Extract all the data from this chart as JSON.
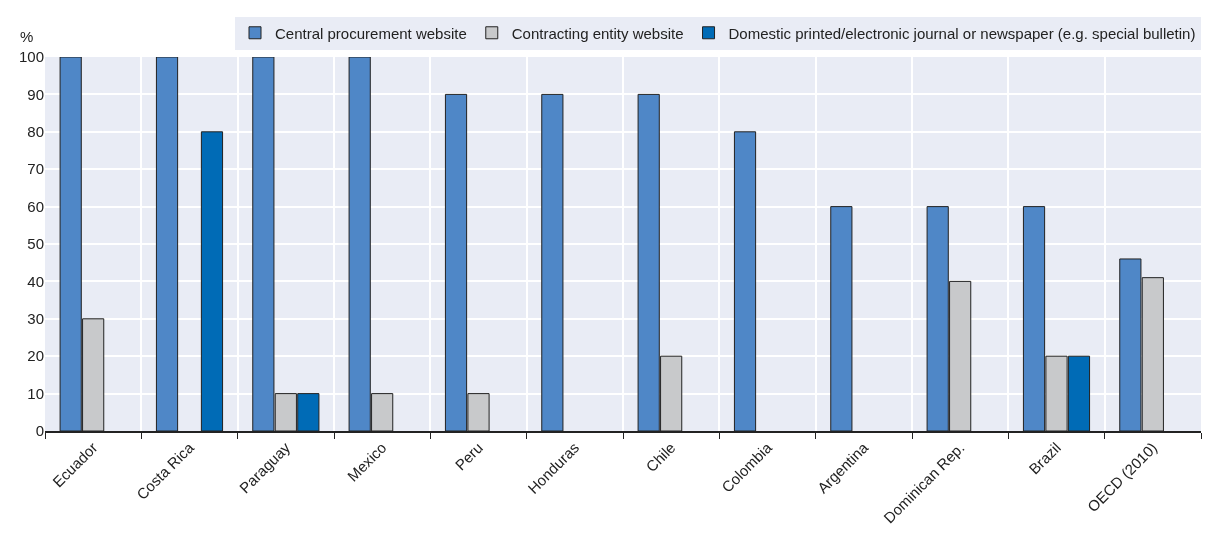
{
  "chart_data": {
    "type": "bar",
    "ylabel": "%",
    "categories": [
      "Ecuador",
      "Costa Rica",
      "Paraguay",
      "Mexico",
      "Peru",
      "Honduras",
      "Chile",
      "Colombia",
      "Argentina",
      "Dominican Rep.",
      "Brazil",
      "OECD (2010)"
    ],
    "series": [
      {
        "name": "Central procurement website",
        "color": "#4f87c7",
        "values": [
          100,
          100,
          100,
          100,
          90,
          90,
          90,
          80,
          60,
          60,
          60,
          46
        ]
      },
      {
        "name": "Contracting entity website",
        "color": "#c8c9cb",
        "values": [
          30,
          null,
          10,
          10,
          10,
          null,
          20,
          null,
          null,
          40,
          20,
          41
        ]
      },
      {
        "name": "Domestic printed/electronic journal or newspaper (e.g. special bulletin)",
        "color": "#006bb6",
        "values": [
          null,
          80,
          10,
          null,
          null,
          null,
          null,
          null,
          null,
          null,
          20,
          null
        ]
      }
    ],
    "ylim": [
      0,
      100
    ],
    "yticks": [
      0,
      10,
      20,
      30,
      40,
      50,
      60,
      70,
      80,
      90,
      100
    ],
    "grid": true,
    "legend": "top"
  }
}
